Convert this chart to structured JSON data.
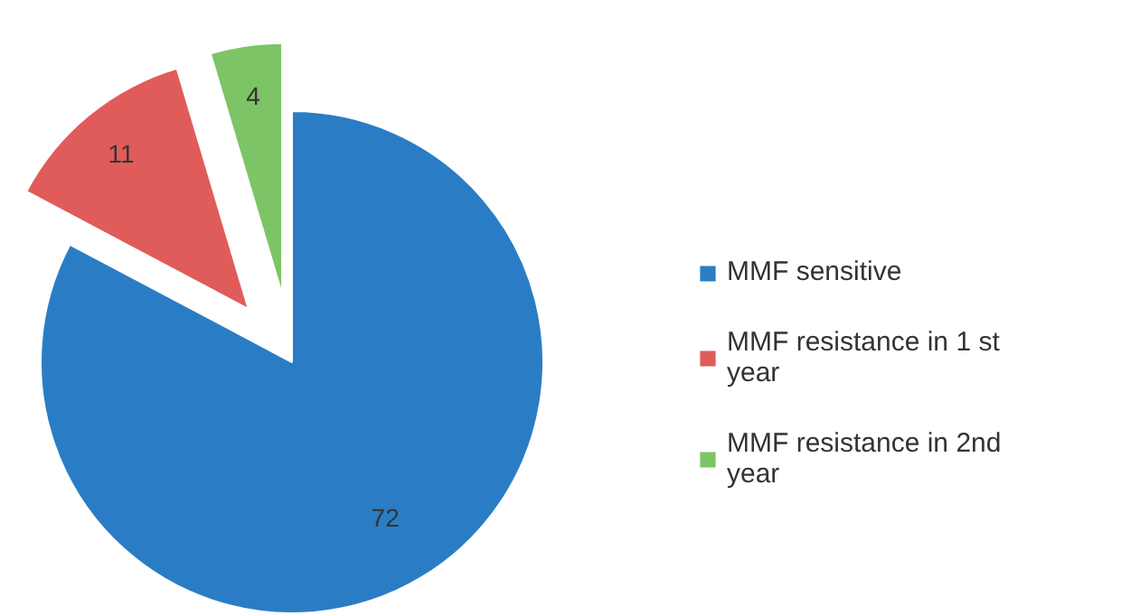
{
  "chart_data": {
    "type": "pie",
    "categories": [
      "MMF sensitive",
      "MMF resistance in 1 st year",
      "MMF resistance in 2nd year"
    ],
    "values": [
      72,
      11,
      4
    ],
    "colors": [
      "#2a7dc4",
      "#e05c5a",
      "#7cc466"
    ],
    "data_labels": true,
    "legend": "right"
  }
}
